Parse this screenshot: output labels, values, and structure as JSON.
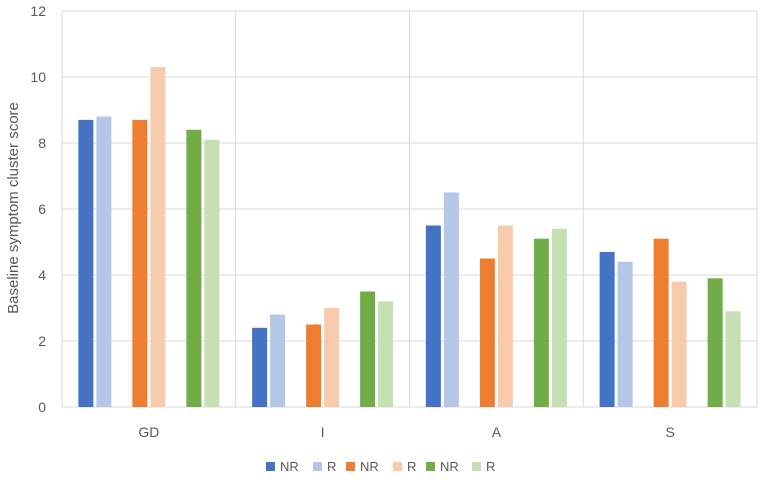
{
  "chart_data": {
    "type": "bar",
    "title": "",
    "xlabel": "",
    "ylabel": "Baseline symptom cluster score",
    "ylim": [
      0,
      12
    ],
    "yticks": [
      0,
      2,
      4,
      6,
      8,
      10,
      12
    ],
    "grid": true,
    "legend_position": "bottom",
    "categories": [
      "GD",
      "I",
      "A",
      "S"
    ],
    "series": [
      {
        "name": "NR",
        "color": "#4472C4",
        "values": [
          8.7,
          2.4,
          5.5,
          4.7
        ]
      },
      {
        "name": "R",
        "color": "#B4C7E7",
        "values": [
          8.8,
          2.8,
          6.5,
          4.4
        ]
      },
      {
        "name": "NR",
        "color": "#ED7D31",
        "values": [
          8.7,
          2.5,
          4.5,
          5.1
        ]
      },
      {
        "name": "R",
        "color": "#F8CBAD",
        "values": [
          10.3,
          3.0,
          5.5,
          3.8
        ]
      },
      {
        "name": "NR",
        "color": "#70AD47",
        "values": [
          8.4,
          3.5,
          5.1,
          3.9
        ]
      },
      {
        "name": "R",
        "color": "#C5E0B4",
        "values": [
          8.1,
          3.2,
          5.4,
          2.9
        ]
      }
    ]
  }
}
